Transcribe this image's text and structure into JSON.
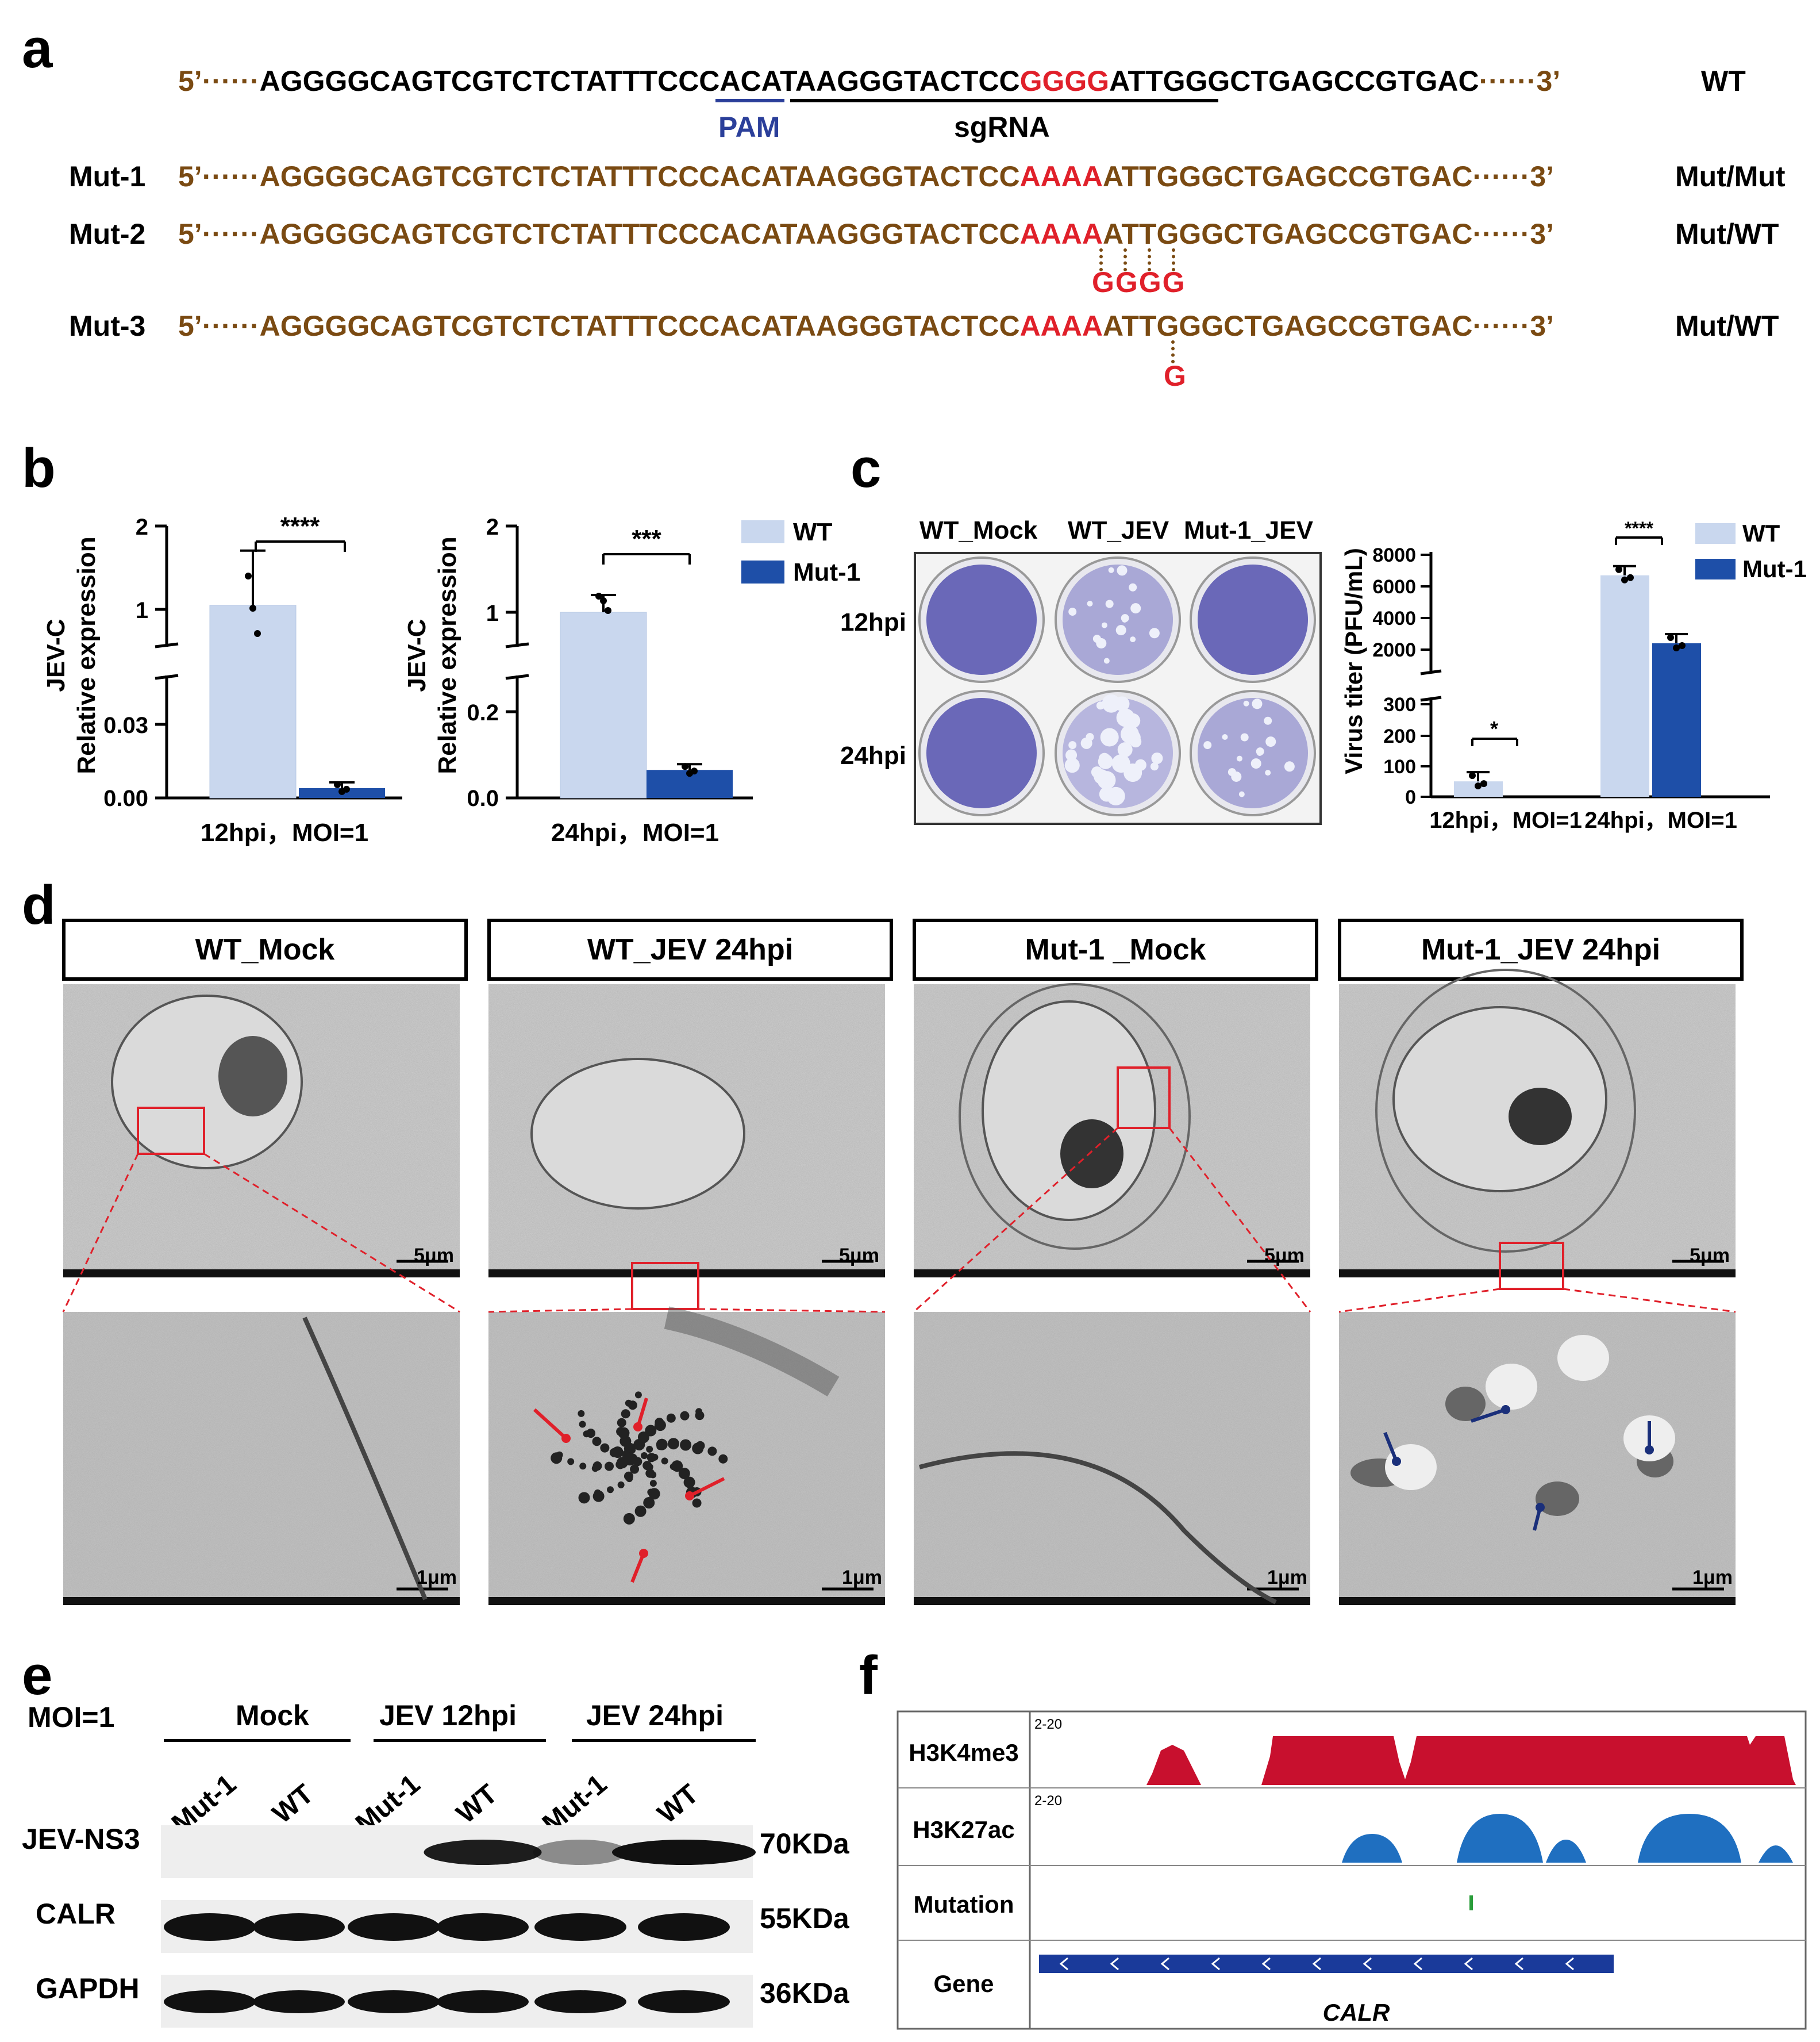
{
  "panel_labels": {
    "a": "a",
    "b": "b",
    "c": "c",
    "d": "d",
    "e": "e",
    "f": "f"
  },
  "colors": {
    "brown": "#7a4a12",
    "red": "#e0202a",
    "blue": "#2b3f9a",
    "wt_fill": "#c9d7ee",
    "mut_fill": "#1e4fa8",
    "h3k4me3": "#c8102e",
    "h3k27ac": "#1f6fc0",
    "mutation": "#2a9d3a",
    "gene": "#1a3a9a",
    "arrow_red": "#e0202a",
    "arrow_blue": "#1a2f7a"
  },
  "panel_a": {
    "wt": {
      "five": "5’······",
      "seq_pre": "AGGGGCAGTCGTCTCTATTTCCCACATAAGGGTACTCC",
      "seq_mut": "GGGG",
      "seq_post": "ATTGGGCTGAGCCGTGAC",
      "three": "······3’",
      "genotype": "WT"
    },
    "pam_label": "PAM",
    "sgrna_label": "sgRNA",
    "mutants": [
      {
        "name": "Mut-1",
        "five": "5’······",
        "seq_pre": "AGGGGCAGTCGTCTCTATTTCCCACATAAGGGTACTCC",
        "seq_mut": "AAAA",
        "seq_post": "ATTGGGCTGAGCCGTGAC",
        "three": "······3’",
        "genotype": "Mut/Mut",
        "below": ""
      },
      {
        "name": "Mut-2",
        "five": "5’······",
        "seq_pre": "AGGGGCAGTCGTCTCTATTTCCCACATAAGGGTACTCC",
        "seq_mut": "AAAA",
        "seq_post": "ATTGGGCTGAGCCGTGAC",
        "three": "······3’",
        "genotype": "Mut/WT",
        "below": "GGGG"
      },
      {
        "name": "Mut-3",
        "five": "5’······",
        "seq_pre": "AGGGGCAGTCGTCTCTATTTCCCACATAAGGGTACTCC",
        "seq_mut": "AAAA",
        "seq_post": "ATTGGGCTGAGCCGTGAC",
        "three": "······3’",
        "genotype": "Mut/WT",
        "below": "G"
      }
    ]
  },
  "chart_data": [
    {
      "type": "bar",
      "panel": "b-left",
      "ylabel": "JEV-C",
      "ylabel2": "Relative expression",
      "xlabel": "12hpi，MOI=1",
      "y_upper_ticks": [
        "2",
        "1"
      ],
      "y_lower_ticks": [
        "0.03",
        "0.00"
      ],
      "series": [
        {
          "name": "WT",
          "values": [
            1.05
          ]
        },
        {
          "name": "Mut-1",
          "values": [
            0.004
          ]
        }
      ],
      "significance": "****"
    },
    {
      "type": "bar",
      "panel": "b-right",
      "ylabel": "JEV-C",
      "ylabel2": "Relative expression",
      "xlabel": "24hpi，MOI=1",
      "y_upper_ticks": [
        "2",
        "1"
      ],
      "y_lower_ticks": [
        "0.2",
        "0.0"
      ],
      "series": [
        {
          "name": "WT",
          "values": [
            1.0
          ]
        },
        {
          "name": "Mut-1",
          "values": [
            0.065
          ]
        }
      ],
      "significance": "***"
    },
    {
      "type": "bar",
      "panel": "c-right",
      "ylabel": "Virus titer (PFU/mL)",
      "categories": [
        "12hpi，MOI=1",
        "24hpi，MOI=1"
      ],
      "y_upper_ticks": [
        "8000",
        "6000",
        "4000",
        "2000"
      ],
      "y_lower_ticks": [
        "300",
        "200",
        "100",
        "0"
      ],
      "series": [
        {
          "name": "WT",
          "values": [
            50,
            6700
          ]
        },
        {
          "name": "Mut-1",
          "values": [
            0,
            2400
          ]
        }
      ],
      "significance": [
        "*",
        "****"
      ]
    }
  ],
  "legend_b": [
    {
      "name": "WT"
    },
    {
      "name": "Mut-1"
    }
  ],
  "legend_c": [
    {
      "name": "WT"
    },
    {
      "name": "Mut-1"
    }
  ],
  "panel_c": {
    "cols": [
      "WT_Mock",
      "WT_JEV",
      "Mut-1_JEV"
    ],
    "rows": [
      "12hpi",
      "24hpi"
    ]
  },
  "panel_d": {
    "titles": [
      "WT_Mock",
      "WT_JEV 24hpi",
      "Mut-1 _Mock",
      "Mut-1_JEV 24hpi"
    ],
    "scale_top": "5μm",
    "scale_bottom": "1μm"
  },
  "panel_e": {
    "moi": "MOI=1",
    "groups": [
      "Mock",
      "JEV 12hpi",
      "JEV 24hpi"
    ],
    "lanes": [
      "Mut-1",
      "WT",
      "Mut-1",
      "WT",
      "Mut-1",
      "WT"
    ],
    "blots": [
      {
        "name": "JEV-NS3",
        "size": "70KDa"
      },
      {
        "name": "CALR",
        "size": "55KDa"
      },
      {
        "name": "GAPDH",
        "size": "36KDa"
      }
    ]
  },
  "panel_f": {
    "tracks": [
      {
        "name": "H3K4me3",
        "range": "2-20"
      },
      {
        "name": "H3K27ac",
        "range": "2-20"
      },
      {
        "name": "Mutation",
        "range": ""
      },
      {
        "name": "Gene",
        "range": ""
      }
    ],
    "gene_name": "CALR"
  }
}
